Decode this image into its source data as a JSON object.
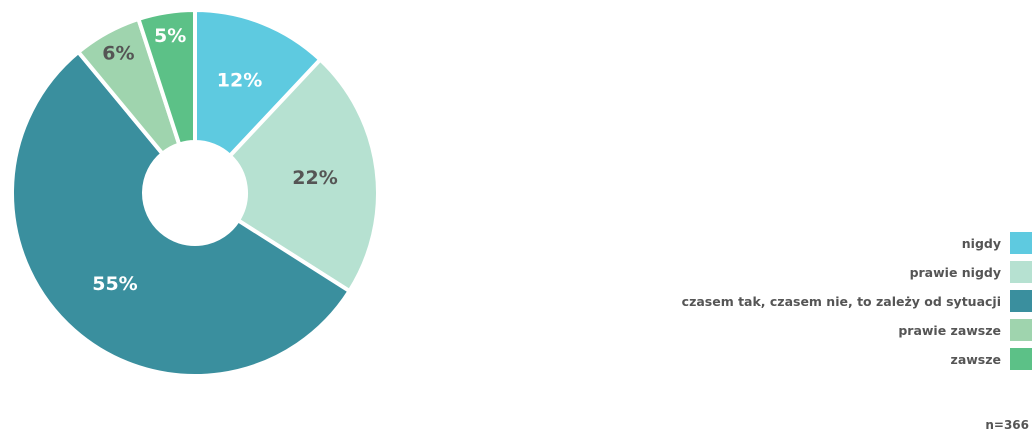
{
  "chart_data": {
    "type": "pie",
    "variant": "donut",
    "categories": [
      "nigdy",
      "prawie nigdy",
      "czasem tak, czasem nie, to zależy od sytuacji",
      "prawie zawsze",
      "zawsze"
    ],
    "values": [
      12,
      22,
      55,
      6,
      5
    ],
    "value_labels": [
      "12%",
      "22%",
      "55%",
      "6%",
      "5%"
    ],
    "colors": [
      "#5ECAE0",
      "#B6E1D1",
      "#3A8F9E",
      "#9FD4AE",
      "#5CC187"
    ],
    "label_colors": [
      "#ffffff",
      "#555555",
      "#ffffff",
      "#555555",
      "#ffffff"
    ],
    "legend_placement": "bottom-right"
  },
  "footnote": "n=366"
}
